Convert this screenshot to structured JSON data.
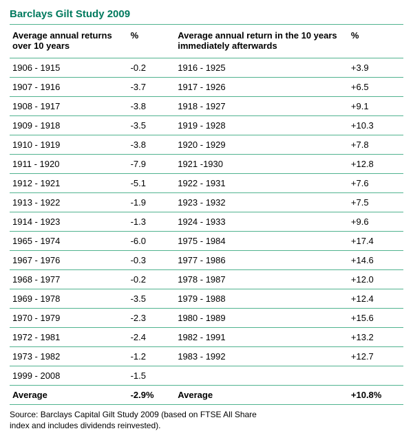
{
  "title": "Barclays Gilt Study 2009",
  "title_color": "#007a5e",
  "rule_color": "#4fb28e",
  "text_color": "#000000",
  "headers": {
    "period1": "Average annual returns over 10 years",
    "pct1": "%",
    "period2": "Average annual return in the 10 years immediately afterwards",
    "pct2": "%"
  },
  "rows": [
    {
      "period1": "1906 - 1915",
      "pct1": "-0.2",
      "period2": "1916 - 1925",
      "pct2": "+3.9"
    },
    {
      "period1": "1907 - 1916",
      "pct1": "-3.7",
      "period2": "1917 - 1926",
      "pct2": "+6.5"
    },
    {
      "period1": "1908 - 1917",
      "pct1": "-3.8",
      "period2": "1918 - 1927",
      "pct2": "+9.1"
    },
    {
      "period1": "1909 - 1918",
      "pct1": "-3.5",
      "period2": "1919 - 1928",
      "pct2": "+10.3"
    },
    {
      "period1": "1910 - 1919",
      "pct1": "-3.8",
      "period2": "1920 - 1929",
      "pct2": "+7.8"
    },
    {
      "period1": "1911 - 1920",
      "pct1": "-7.9",
      "period2": "1921 -1930",
      "pct2": "+12.8"
    },
    {
      "period1": "1912 - 1921",
      "pct1": "-5.1",
      "period2": "1922 - 1931",
      "pct2": "+7.6"
    },
    {
      "period1": "1913 - 1922",
      "pct1": "-1.9",
      "period2": "1923 - 1932",
      "pct2": "+7.5"
    },
    {
      "period1": "1914 - 1923",
      "pct1": "-1.3",
      "period2": "1924 - 1933",
      "pct2": "+9.6"
    },
    {
      "period1": "1965 - 1974",
      "pct1": "-6.0",
      "period2": "1975 - 1984",
      "pct2": "+17.4"
    },
    {
      "period1": "1967 - 1976",
      "pct1": "-0.3",
      "period2": "1977 - 1986",
      "pct2": "+14.6"
    },
    {
      "period1": "1968 - 1977",
      "pct1": "-0.2",
      "period2": "1978 - 1987",
      "pct2": "+12.0"
    },
    {
      "period1": "1969 - 1978",
      "pct1": "-3.5",
      "period2": "1979 - 1988",
      "pct2": "+12.4"
    },
    {
      "period1": "1970 - 1979",
      "pct1": "-2.3",
      "period2": "1980 - 1989",
      "pct2": "+15.6"
    },
    {
      "period1": "1972 - 1981",
      "pct1": " -2.4",
      "period2": "1982 - 1991",
      "pct2": "+13.2"
    },
    {
      "period1": "1973 - 1982",
      "pct1": "-1.2",
      "period2": "1983 - 1992",
      "pct2": "+12.7"
    },
    {
      "period1": "1999 - 2008",
      "pct1": "-1.5",
      "period2": "",
      "pct2": ""
    }
  ],
  "average": {
    "label1": "Average",
    "pct1": "-2.9%",
    "label2": "Average",
    "pct2": "+10.8%"
  },
  "source": "Source: Barclays Capital Gilt Study 2009 (based on FTSE All Share index and includes dividends reinvested)."
}
